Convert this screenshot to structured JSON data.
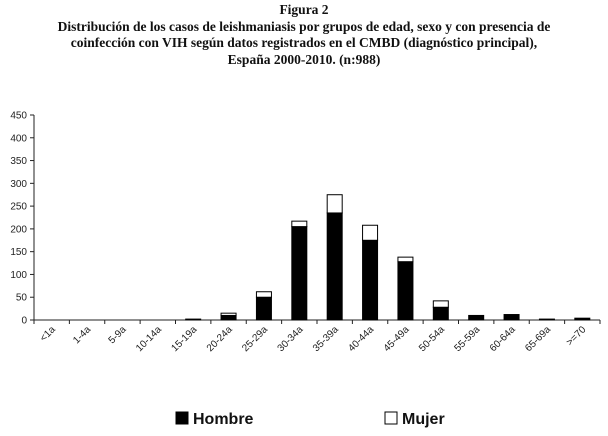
{
  "figure": {
    "label": "Figura 2",
    "title_lines": [
      "Distribución de los casos de leishmaniasis por grupos de edad, sexo y con presencia de",
      "coinfección con VIH según datos registrados en el CMBD (diagnóstico principal),",
      "España 2000-2010. (n:988)"
    ]
  },
  "chart_data": {
    "type": "bar",
    "stacked": true,
    "title": "Distribución de los casos de leishmaniasis por grupos de edad, sexo y con presencia de coinfección con VIH según datos registrados en el CMBD (diagnóstico principal), España 2000-2010. (n:988)",
    "categories": [
      "<1a",
      "1-4a",
      "5-9a",
      "10-14a",
      "15-19a",
      "20-24a",
      "25-29a",
      "30-34a",
      "35-39a",
      "40-44a",
      "45-49a",
      "50-54a",
      "55-59a",
      "60-64a",
      "65-69a",
      ">=70"
    ],
    "series": [
      {
        "name": "Hombre",
        "color": "#000000",
        "values": [
          0,
          0,
          0,
          0,
          2,
          10,
          50,
          205,
          235,
          175,
          128,
          28,
          10,
          12,
          2,
          4
        ]
      },
      {
        "name": "Mujer",
        "color": "#ffffff",
        "values": [
          0,
          0,
          0,
          0,
          0,
          5,
          12,
          12,
          40,
          33,
          10,
          14,
          0,
          0,
          0,
          0
        ]
      }
    ],
    "yticks": [
      0,
      50,
      100,
      150,
      200,
      250,
      300,
      350,
      400,
      450
    ],
    "ylim": [
      0,
      450
    ],
    "grid": false,
    "legend_position": "bottom"
  }
}
